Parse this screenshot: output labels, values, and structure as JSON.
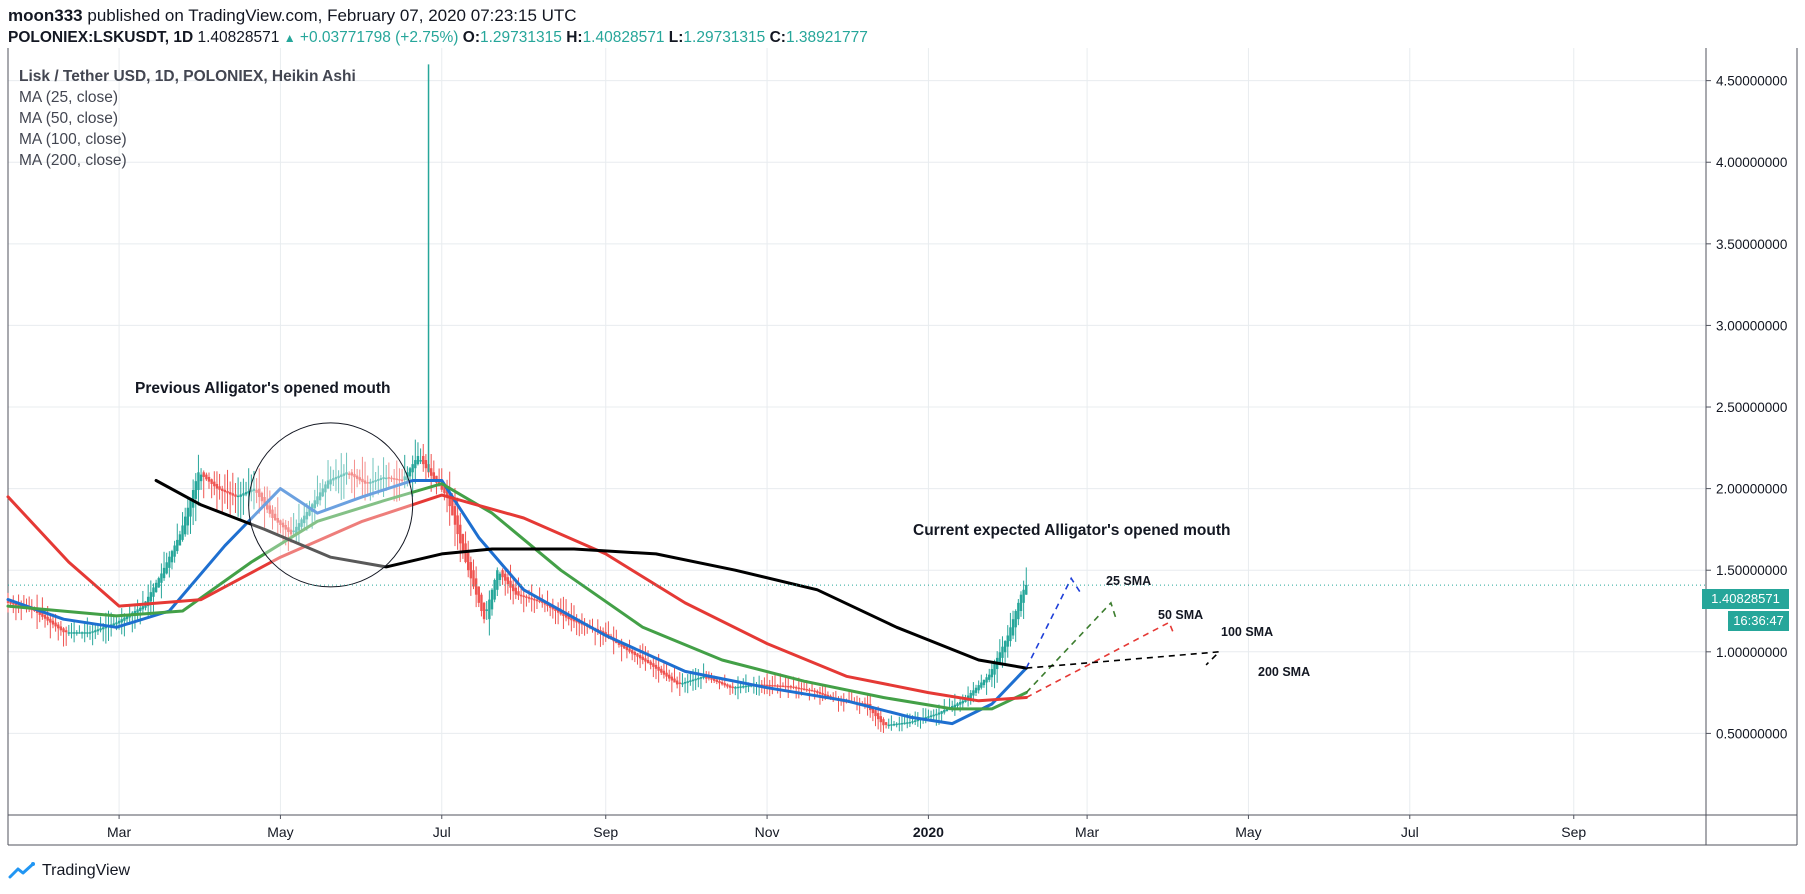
{
  "header": {
    "author": "moon333",
    "published": " published on TradingView.com, February 07, 2020 07:23:15 UTC",
    "symbol": "POLONIEX:LSKUSDT, 1D",
    "last": "1.40828571",
    "change_arrow": "▲",
    "change": "+0.03771798 (+2.75%)",
    "o_label": "O:",
    "o": "1.29731315",
    "h_label": "H:",
    "h": "1.40828571",
    "l_label": "L:",
    "l": "1.29731315",
    "c_label": "C:",
    "c": "1.38921777"
  },
  "legend": {
    "title": "Lisk / Tether USD, 1D, POLONIEX, Heikin Ashi",
    "items": [
      "MA (25, close)",
      "MA (50, close)",
      "MA (100, close)",
      "MA (200, close)"
    ]
  },
  "annotations": {
    "previous": "Previous Alligator's opened mouth",
    "current": "Current expected Alligator's opened mouth",
    "sma25": "25 SMA",
    "sma50": "50 SMA",
    "sma100": "100 SMA",
    "sma200": "200 SMA"
  },
  "price_box": {
    "price": "1.40828571",
    "countdown": "16:36:47"
  },
  "footer": {
    "brand": "TradingView"
  },
  "colors": {
    "up": "#26a69a",
    "down": "#ef5350",
    "ma25": "#1e6fd0",
    "ma50": "#43a047",
    "ma100": "#e53935",
    "ma200": "#000000",
    "grid": "#e8ecef",
    "axis": "#50535e"
  },
  "chart_data": {
    "type": "line",
    "title": "Lisk / Tether USD, 1D, POLONIEX, Heikin Ashi",
    "x_tick_labels": [
      "Mar",
      "May",
      "Jul",
      "Sep",
      "Nov",
      "2020",
      "Mar",
      "May",
      "Jul",
      "Sep"
    ],
    "x_tick_dates": [
      "2019-03-01",
      "2019-05-01",
      "2019-07-01",
      "2019-09-01",
      "2019-11-01",
      "2020-01-01",
      "2020-03-01",
      "2020-05-01",
      "2020-07-01",
      "2020-09-01"
    ],
    "x_range": [
      "2019-01-18",
      "2020-10-21"
    ],
    "y_ticks": [
      0.5,
      1.0,
      1.5,
      2.0,
      2.5,
      3.0,
      3.5,
      4.0,
      4.5
    ],
    "y_tick_labels": [
      "0.50000000",
      "1.00000000",
      "1.50000000",
      "2.00000000",
      "2.50000000",
      "3.00000000",
      "3.50000000",
      "4.00000000",
      "4.50000000"
    ],
    "y_range": [
      0.0,
      4.7
    ],
    "last_price": 1.40828571,
    "grid": true,
    "price_series": {
      "name": "Heikin Ashi",
      "points": [
        [
          "2019-01-18",
          1.3
        ],
        [
          "2019-01-28",
          1.25
        ],
        [
          "2019-02-08",
          1.12
        ],
        [
          "2019-02-18",
          1.12
        ],
        [
          "2019-02-28",
          1.18
        ],
        [
          "2019-03-10",
          1.28
        ],
        [
          "2019-03-17",
          1.48
        ],
        [
          "2019-03-24",
          1.72
        ],
        [
          "2019-03-31",
          2.1
        ],
        [
          "2019-04-07",
          2.0
        ],
        [
          "2019-04-14",
          1.95
        ],
        [
          "2019-04-21",
          2.0
        ],
        [
          "2019-04-28",
          1.82
        ],
        [
          "2019-05-05",
          1.72
        ],
        [
          "2019-05-12",
          1.88
        ],
        [
          "2019-05-19",
          2.05
        ],
        [
          "2019-05-26",
          2.1
        ],
        [
          "2019-06-02",
          2.03
        ],
        [
          "2019-06-09",
          2.07
        ],
        [
          "2019-06-16",
          2.05
        ],
        [
          "2019-06-22",
          2.2
        ],
        [
          "2019-06-26",
          2.1
        ],
        [
          "2019-07-03",
          1.95
        ],
        [
          "2019-07-10",
          1.55
        ],
        [
          "2019-07-17",
          1.2
        ],
        [
          "2019-07-22",
          1.5
        ],
        [
          "2019-07-29",
          1.35
        ],
        [
          "2019-08-08",
          1.3
        ],
        [
          "2019-08-18",
          1.2
        ],
        [
          "2019-08-30",
          1.12
        ],
        [
          "2019-09-08",
          1.02
        ],
        [
          "2019-09-18",
          0.92
        ],
        [
          "2019-09-28",
          0.8
        ],
        [
          "2019-10-08",
          0.85
        ],
        [
          "2019-10-18",
          0.78
        ],
        [
          "2019-10-28",
          0.8
        ],
        [
          "2019-11-08",
          0.79
        ],
        [
          "2019-11-18",
          0.76
        ],
        [
          "2019-11-28",
          0.7
        ],
        [
          "2019-12-08",
          0.68
        ],
        [
          "2019-12-15",
          0.55
        ],
        [
          "2019-12-25",
          0.57
        ],
        [
          "2020-01-04",
          0.62
        ],
        [
          "2020-01-14",
          0.7
        ],
        [
          "2020-01-24",
          0.86
        ],
        [
          "2020-01-31",
          1.1
        ],
        [
          "2020-02-05",
          1.35
        ],
        [
          "2020-02-07",
          1.41
        ]
      ]
    },
    "spike": {
      "date": "2019-06-26",
      "high": 4.6
    },
    "series": [
      {
        "name": "MA (25, close)",
        "color": "#1e6fd0",
        "points": [
          [
            "2019-01-18",
            1.32
          ],
          [
            "2019-02-08",
            1.2
          ],
          [
            "2019-02-28",
            1.15
          ],
          [
            "2019-03-20",
            1.25
          ],
          [
            "2019-04-10",
            1.65
          ],
          [
            "2019-05-01",
            2.0
          ],
          [
            "2019-05-15",
            1.85
          ],
          [
            "2019-06-01",
            1.95
          ],
          [
            "2019-06-20",
            2.05
          ],
          [
            "2019-07-01",
            2.05
          ],
          [
            "2019-07-15",
            1.7
          ],
          [
            "2019-08-01",
            1.38
          ],
          [
            "2019-09-01",
            1.1
          ],
          [
            "2019-10-01",
            0.88
          ],
          [
            "2019-11-01",
            0.78
          ],
          [
            "2019-12-01",
            0.7
          ],
          [
            "2019-12-25",
            0.6
          ],
          [
            "2020-01-10",
            0.56
          ],
          [
            "2020-01-25",
            0.68
          ],
          [
            "2020-02-07",
            0.9
          ]
        ]
      },
      {
        "name": "MA (50, close)",
        "color": "#43a047",
        "points": [
          [
            "2019-01-18",
            1.28
          ],
          [
            "2019-02-28",
            1.22
          ],
          [
            "2019-03-25",
            1.25
          ],
          [
            "2019-04-20",
            1.55
          ],
          [
            "2019-05-15",
            1.8
          ],
          [
            "2019-06-10",
            1.93
          ],
          [
            "2019-07-01",
            2.03
          ],
          [
            "2019-07-20",
            1.85
          ],
          [
            "2019-08-15",
            1.5
          ],
          [
            "2019-09-15",
            1.15
          ],
          [
            "2019-10-15",
            0.95
          ],
          [
            "2019-11-15",
            0.82
          ],
          [
            "2019-12-15",
            0.72
          ],
          [
            "2020-01-10",
            0.65
          ],
          [
            "2020-01-25",
            0.65
          ],
          [
            "2020-02-07",
            0.75
          ]
        ]
      },
      {
        "name": "MA (100, close)",
        "color": "#e53935",
        "points": [
          [
            "2019-01-18",
            1.95
          ],
          [
            "2019-02-10",
            1.55
          ],
          [
            "2019-03-01",
            1.28
          ],
          [
            "2019-04-01",
            1.32
          ],
          [
            "2019-05-01",
            1.58
          ],
          [
            "2019-06-01",
            1.8
          ],
          [
            "2019-07-01",
            1.96
          ],
          [
            "2019-08-01",
            1.82
          ],
          [
            "2019-09-01",
            1.6
          ],
          [
            "2019-10-01",
            1.3
          ],
          [
            "2019-11-01",
            1.05
          ],
          [
            "2019-12-01",
            0.85
          ],
          [
            "2020-01-01",
            0.75
          ],
          [
            "2020-01-20",
            0.7
          ],
          [
            "2020-02-07",
            0.72
          ]
        ]
      },
      {
        "name": "MA (200, close)",
        "color": "#000000",
        "points": [
          [
            "2019-03-15",
            2.05
          ],
          [
            "2019-04-01",
            1.9
          ],
          [
            "2019-04-25",
            1.75
          ],
          [
            "2019-05-20",
            1.58
          ],
          [
            "2019-06-10",
            1.52
          ],
          [
            "2019-07-01",
            1.6
          ],
          [
            "2019-07-20",
            1.63
          ],
          [
            "2019-08-20",
            1.63
          ],
          [
            "2019-09-20",
            1.6
          ],
          [
            "2019-10-20",
            1.5
          ],
          [
            "2019-11-20",
            1.38
          ],
          [
            "2019-12-20",
            1.15
          ],
          [
            "2020-01-20",
            0.95
          ],
          [
            "2020-02-07",
            0.9
          ]
        ]
      }
    ],
    "projections": [
      {
        "label": "25 SMA",
        "color": "#1e3fd8",
        "points": [
          [
            "2020-02-07",
            0.9
          ],
          [
            "2020-02-24",
            1.45
          ],
          [
            "2020-02-28",
            1.35
          ]
        ]
      },
      {
        "label": "50 SMA",
        "color": "#3c7d2e",
        "points": [
          [
            "2020-02-07",
            0.75
          ],
          [
            "2020-03-10",
            1.3
          ],
          [
            "2020-03-12",
            1.2
          ]
        ]
      },
      {
        "label": "100 SMA",
        "color": "#e53935",
        "points": [
          [
            "2020-02-07",
            0.72
          ],
          [
            "2020-04-01",
            1.18
          ],
          [
            "2020-04-03",
            1.1
          ]
        ]
      },
      {
        "label": "200 SMA",
        "color": "#000000",
        "points": [
          [
            "2020-02-07",
            0.9
          ],
          [
            "2020-04-20",
            1.0
          ],
          [
            "2020-04-15",
            0.92
          ]
        ]
      }
    ],
    "circle_annotation": {
      "date": "2019-05-20",
      "price": 1.9
    }
  }
}
